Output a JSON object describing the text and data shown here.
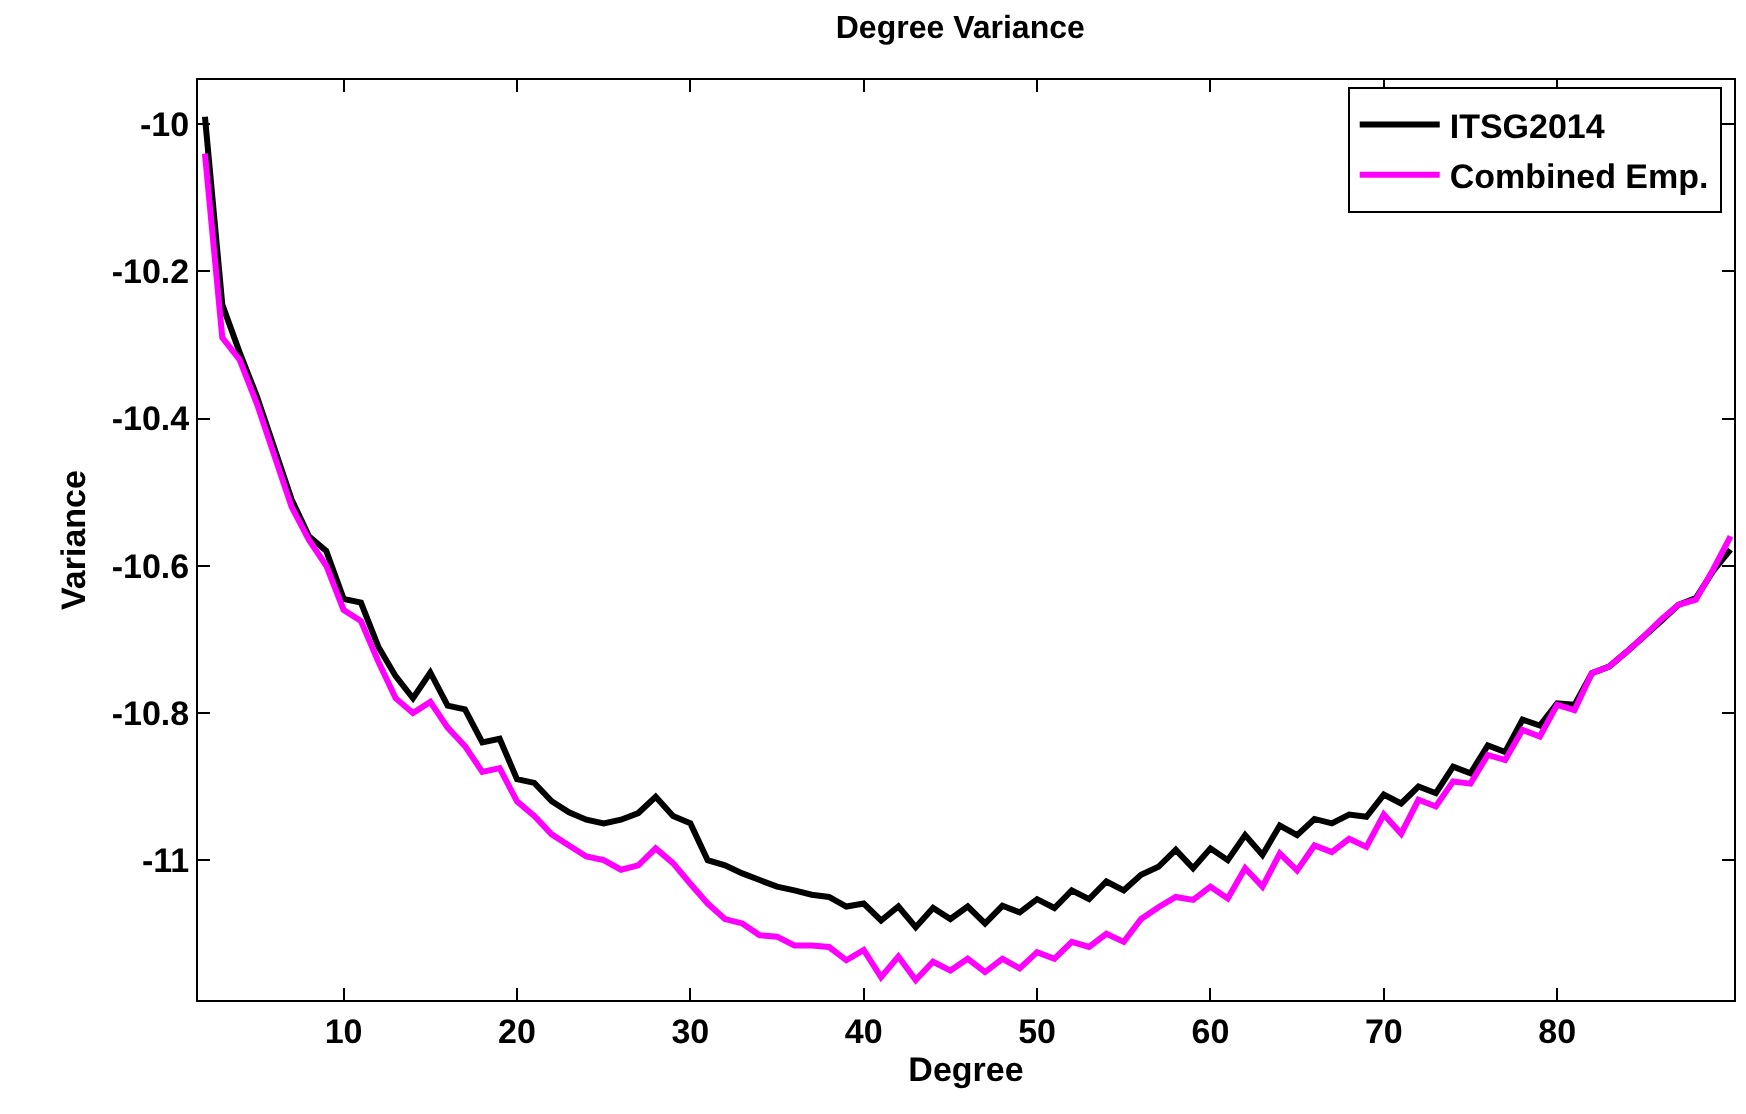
{
  "chart_data": {
    "type": "line",
    "title": "Degree Variance",
    "xlabel": "Degree",
    "ylabel": "Variance",
    "x": [
      2,
      3,
      4,
      5,
      6,
      7,
      8,
      9,
      10,
      11,
      12,
      13,
      14,
      15,
      16,
      17,
      18,
      19,
      20,
      21,
      22,
      23,
      24,
      25,
      26,
      27,
      28,
      29,
      30,
      31,
      32,
      33,
      34,
      35,
      36,
      37,
      38,
      39,
      40,
      41,
      42,
      43,
      44,
      45,
      46,
      47,
      48,
      49,
      50,
      51,
      52,
      53,
      54,
      55,
      56,
      57,
      58,
      59,
      60,
      61,
      62,
      63,
      64,
      65,
      66,
      67,
      68,
      69,
      70,
      71,
      72,
      73,
      74,
      75,
      76,
      77,
      78,
      79,
      80,
      81,
      82,
      83,
      84,
      85,
      86,
      87,
      88,
      89,
      90
    ],
    "series": [
      {
        "name": "ITSG2014",
        "color": "#000000",
        "values": [
          -9.99,
          -10.245,
          -10.31,
          -10.37,
          -10.44,
          -10.51,
          -10.56,
          -10.58,
          -10.645,
          -10.65,
          -10.71,
          -10.75,
          -10.78,
          -10.745,
          -10.79,
          -10.795,
          -10.84,
          -10.835,
          -10.89,
          -10.895,
          -10.92,
          -10.935,
          -10.945,
          -10.95,
          -10.945,
          -10.936,
          -10.914,
          -10.94,
          -10.95,
          -11.0,
          -11.007,
          -11.018,
          -11.027,
          -11.036,
          -11.041,
          -11.047,
          -11.05,
          -11.063,
          -11.059,
          -11.082,
          -11.063,
          -11.091,
          -11.065,
          -11.08,
          -11.063,
          -11.086,
          -11.062,
          -11.071,
          -11.053,
          -11.065,
          -11.041,
          -11.053,
          -11.029,
          -11.041,
          -11.02,
          -11.009,
          -10.986,
          -11.011,
          -10.984,
          -11.0,
          -10.966,
          -10.993,
          -10.953,
          -10.966,
          -10.944,
          -10.95,
          -10.938,
          -10.941,
          -10.911,
          -10.923,
          -10.9,
          -10.909,
          -10.873,
          -10.882,
          -10.844,
          -10.853,
          -10.809,
          -10.817,
          -10.787,
          -10.789,
          -10.746,
          -10.737,
          -10.717,
          -10.696,
          -10.675,
          -10.653,
          -10.644,
          -10.607,
          -10.578
        ]
      },
      {
        "name": "Combined Emp.",
        "color": "#ff00ff",
        "values": [
          -10.04,
          -10.29,
          -10.32,
          -10.38,
          -10.45,
          -10.52,
          -10.565,
          -10.6,
          -10.66,
          -10.675,
          -10.73,
          -10.78,
          -10.8,
          -10.785,
          -10.82,
          -10.845,
          -10.88,
          -10.875,
          -10.92,
          -10.94,
          -10.965,
          -10.98,
          -10.995,
          -11.0,
          -11.013,
          -11.007,
          -10.984,
          -11.004,
          -11.032,
          -11.059,
          -11.08,
          -11.086,
          -11.102,
          -11.104,
          -11.116,
          -11.116,
          -11.118,
          -11.136,
          -11.122,
          -11.159,
          -11.131,
          -11.163,
          -11.138,
          -11.15,
          -11.134,
          -11.152,
          -11.134,
          -11.147,
          -11.125,
          -11.134,
          -11.111,
          -11.118,
          -11.1,
          -11.111,
          -11.08,
          -11.064,
          -11.05,
          -11.054,
          -11.036,
          -11.052,
          -11.011,
          -11.036,
          -10.991,
          -11.014,
          -10.98,
          -10.989,
          -10.971,
          -10.982,
          -10.938,
          -10.964,
          -10.918,
          -10.927,
          -10.893,
          -10.896,
          -10.857,
          -10.864,
          -10.823,
          -10.832,
          -10.789,
          -10.796,
          -10.746,
          -10.737,
          -10.717,
          -10.696,
          -10.673,
          -10.653,
          -10.646,
          -10.605,
          -10.56
        ]
      }
    ],
    "xlim": [
      1.6,
      90.2
    ],
    "ylim": [
      -11.19,
      -9.94
    ],
    "xticks": [
      10,
      20,
      30,
      40,
      50,
      60,
      70,
      80
    ],
    "yticks": [
      -10,
      -10.2,
      -10.4,
      -10.6,
      -10.8,
      -11
    ],
    "legend": "top right",
    "marker": "none",
    "line_style": "solid"
  }
}
